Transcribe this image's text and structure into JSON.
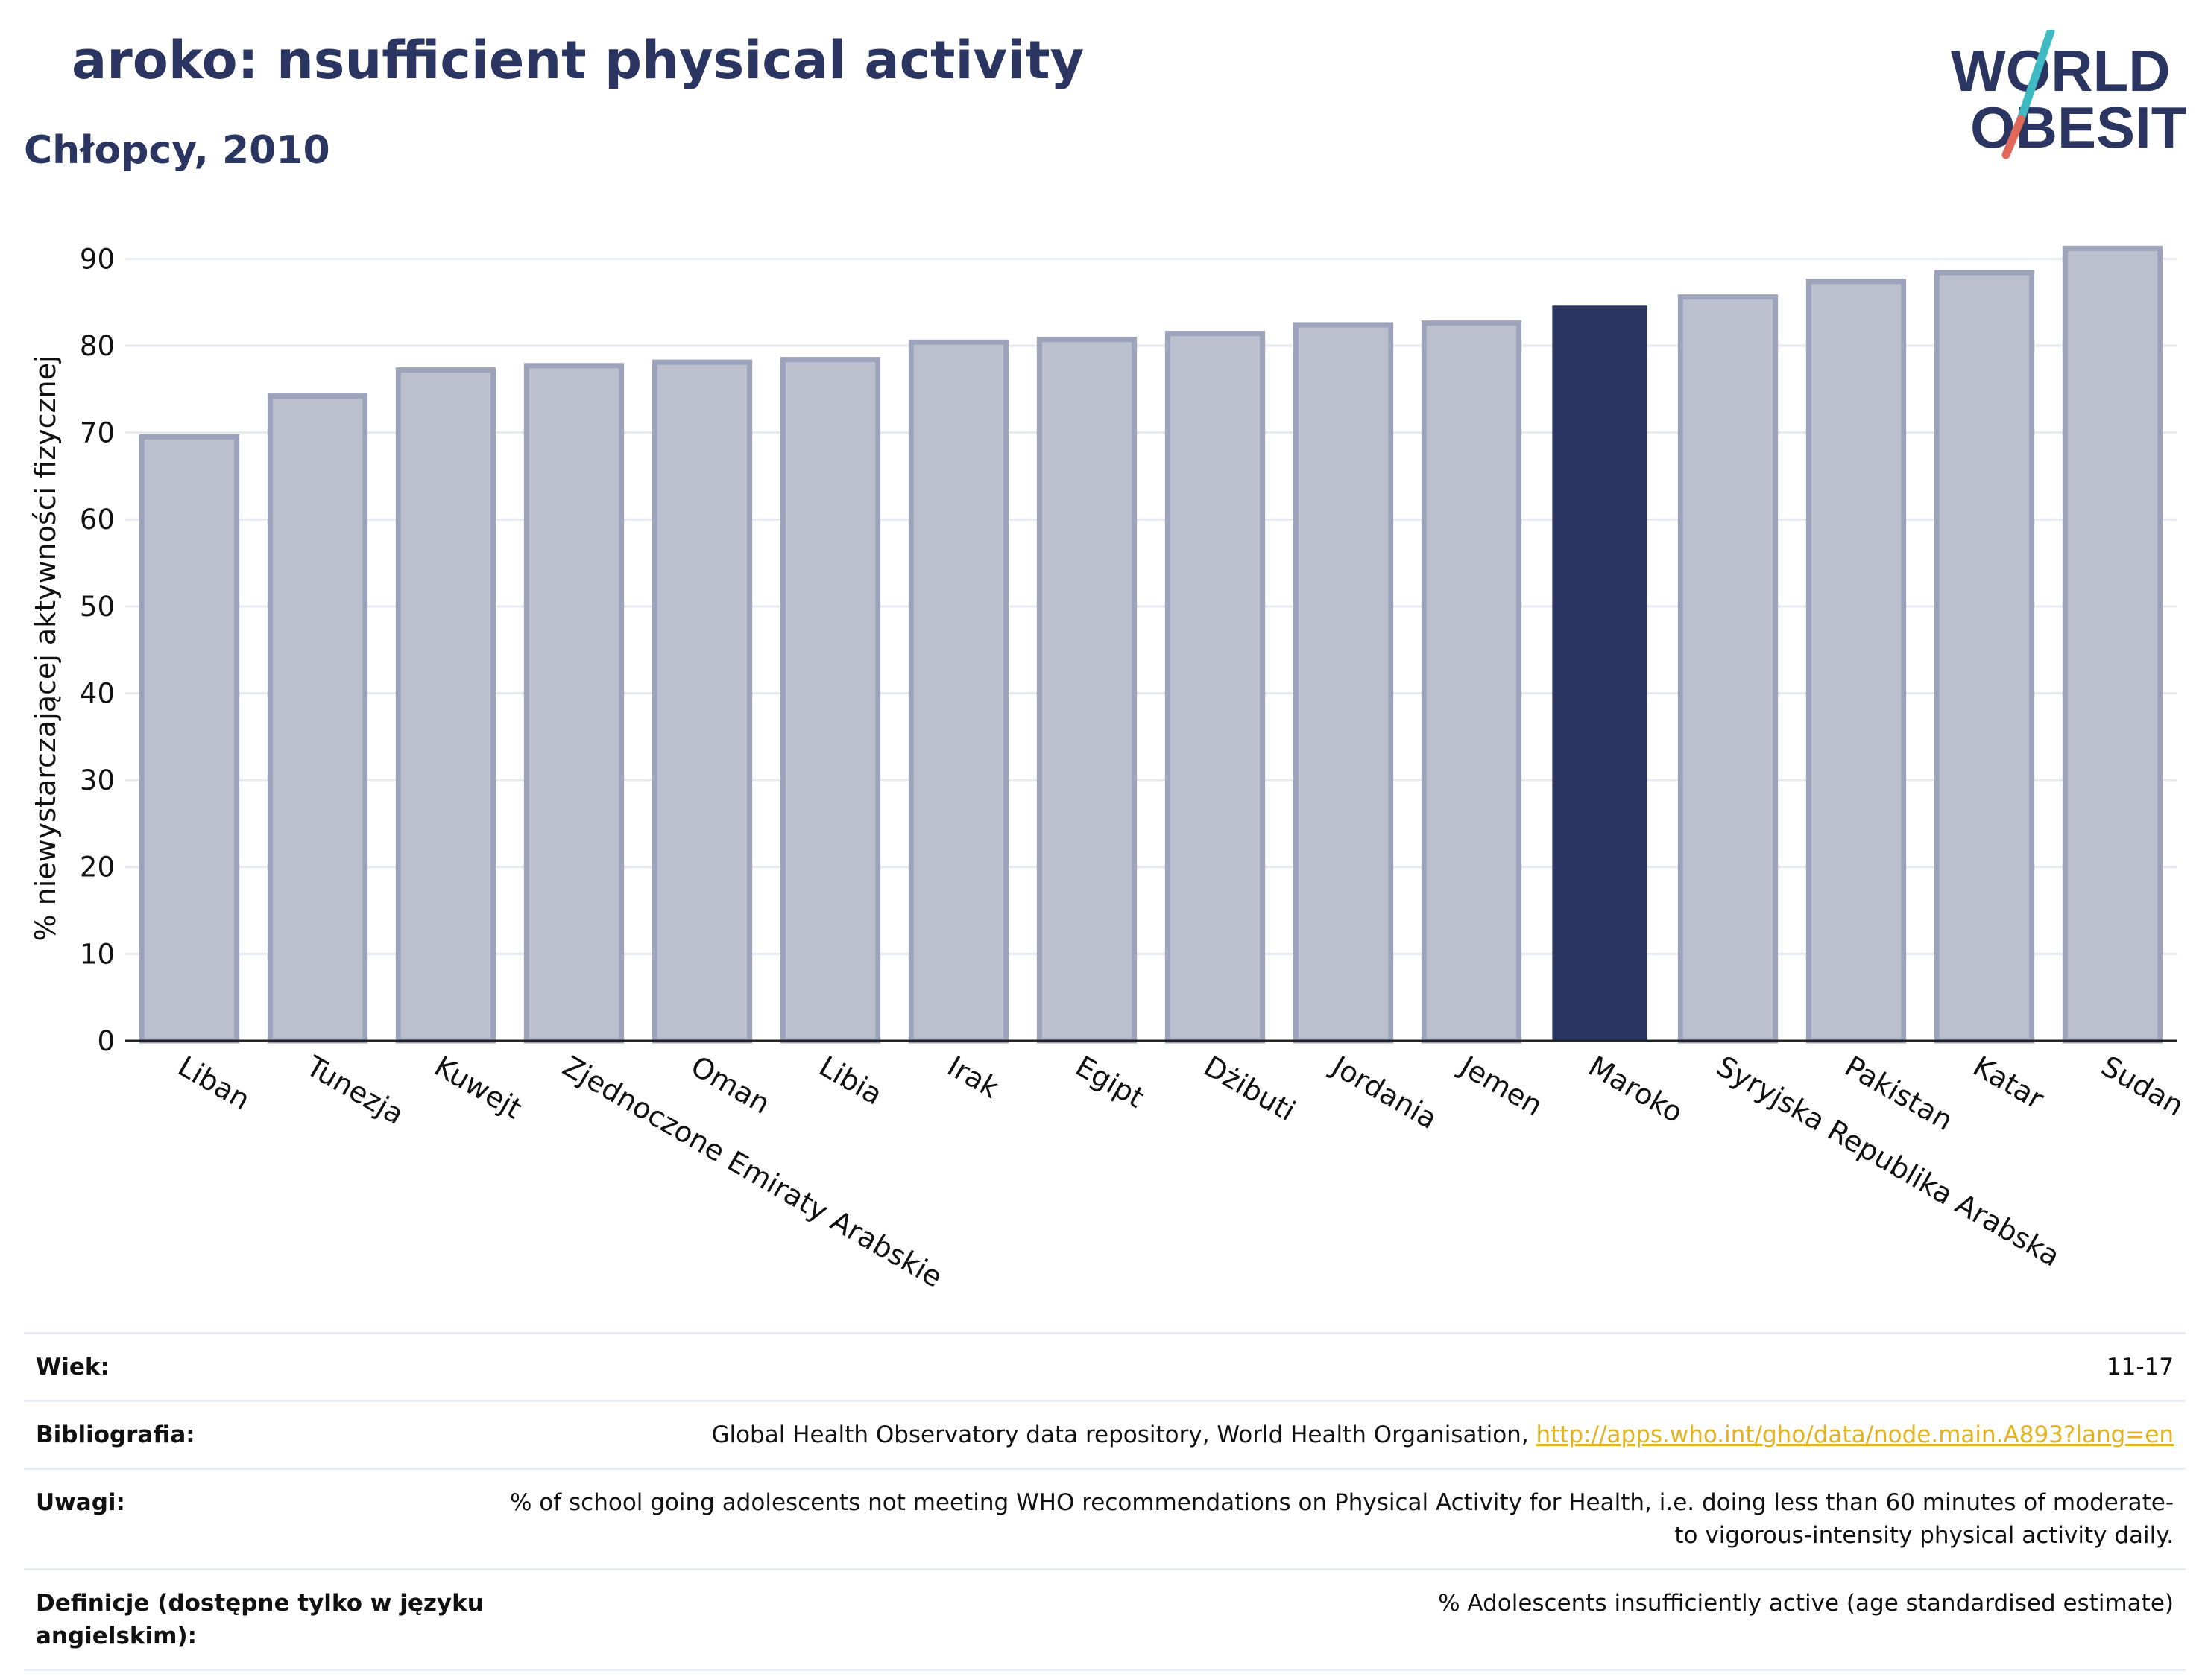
{
  "header": {
    "title": "aroko:  nsufficient physical activity",
    "subtitle": "Chłopcy, 2010"
  },
  "logo": {
    "line1": "WORLD",
    "line2": "OBESITY",
    "colors": {
      "text": "#2a3561",
      "slash_top": "#3fb9c2",
      "slash_bottom": "#e2685a"
    }
  },
  "chart_data": {
    "type": "bar",
    "ylabel": "% niewystarczającej aktywności fizycznej",
    "ylim": [
      0,
      90
    ],
    "yticks": [
      0,
      10,
      20,
      30,
      40,
      50,
      60,
      70,
      80,
      90
    ],
    "grid": true,
    "categories": [
      "Liban",
      "Tunezja",
      "Kuwejt",
      "Zjednoczone Emiraty Arabskie",
      "Oman",
      "Libia",
      "Irak",
      "Egipt",
      "Dżibuti",
      "Jordania",
      "Jemen",
      "Maroko",
      "Syryjska Republika Arabska",
      "Pakistan",
      "Katar",
      "Sudan"
    ],
    "values": [
      69.5,
      74.2,
      77.2,
      77.7,
      78.1,
      78.4,
      80.4,
      80.7,
      81.4,
      82.4,
      82.6,
      84.6,
      85.6,
      87.4,
      88.4,
      91.2
    ],
    "highlight": "Maroko",
    "colors": {
      "bar": "#bcc0ce",
      "bar_edge": "#9da3ba",
      "highlight": "#2a3561",
      "grid": "#e6e9ef",
      "axis": "#222222"
    }
  },
  "meta": {
    "rows": [
      {
        "label": "Wiek:",
        "value": "11-17"
      },
      {
        "label": "Bibliografia:",
        "value": "Global Health Observatory data repository, World Health Organisation, ",
        "link": "http://apps.who.int/gho/data/node.main.A893?lang=en"
      },
      {
        "label": "Uwagi:",
        "value": "% of school going adolescents not meeting WHO recommendations on Physical Activity for Health, i.e. doing less than 60 minutes of moderate- to vigorous-intensity physical activity daily."
      },
      {
        "label": "Definicje (dostępne tylko w języku angielskim):",
        "value": "% Adolescents insufficiently active (age standardised estimate)"
      }
    ]
  }
}
